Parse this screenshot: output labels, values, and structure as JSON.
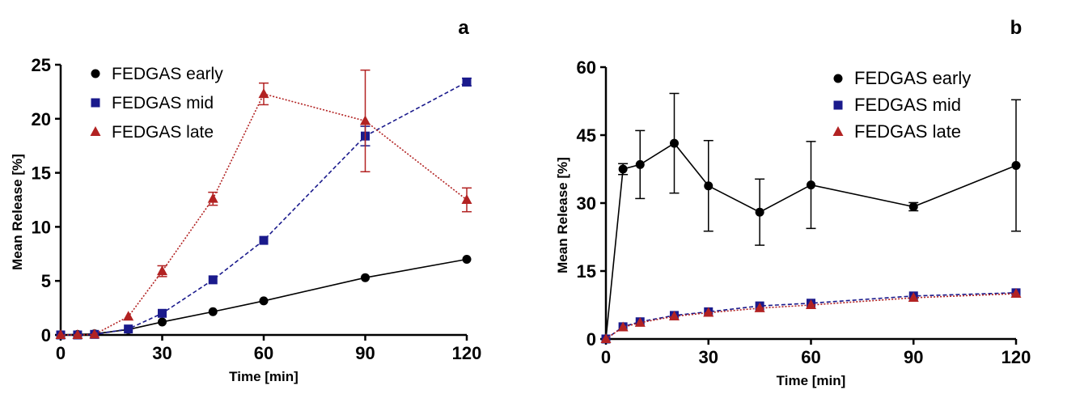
{
  "chart_data": [
    {
      "panel": "a",
      "type": "line",
      "xlabel": "Time [min]",
      "ylabel": "Mean Release [%]",
      "xlim": [
        0,
        120
      ],
      "ylim": [
        0,
        25
      ],
      "xticks": [
        0,
        30,
        60,
        90,
        120
      ],
      "yticks": [
        0,
        5,
        10,
        15,
        20,
        25
      ],
      "grid": false,
      "legend_position": "top-left",
      "series": [
        {
          "name": "FEDGAS early",
          "color": "#000000",
          "marker": "circle",
          "line": "solid",
          "x": [
            0,
            5,
            10,
            20,
            30,
            45,
            60,
            90,
            120
          ],
          "y": [
            0,
            0.05,
            0.1,
            0.5,
            1.2,
            2.15,
            3.15,
            5.3,
            7.0
          ],
          "err": [
            0,
            0,
            0,
            0,
            0,
            0,
            0,
            0,
            0
          ]
        },
        {
          "name": "FEDGAS mid",
          "color": "#1a1a8c",
          "marker": "square",
          "line": "dashed",
          "x": [
            0,
            5,
            10,
            20,
            30,
            45,
            60,
            90,
            120
          ],
          "y": [
            0,
            0,
            0.05,
            0.55,
            2.0,
            5.1,
            8.75,
            18.4,
            23.4
          ],
          "err": [
            0,
            0,
            0,
            0,
            0,
            0,
            0,
            0.9,
            0.35
          ]
        },
        {
          "name": "FEDGAS late",
          "color": "#b22222",
          "marker": "triangle",
          "line": "dotted",
          "x": [
            0,
            5,
            10,
            20,
            30,
            45,
            60,
            90,
            120
          ],
          "y": [
            0,
            0,
            0.05,
            1.7,
            5.9,
            12.6,
            22.3,
            19.8,
            12.5
          ],
          "err": [
            0,
            0,
            0,
            0,
            0.5,
            0.6,
            1.0,
            4.7,
            1.1
          ]
        }
      ]
    },
    {
      "panel": "b",
      "type": "line",
      "xlabel": "Time [min]",
      "ylabel": "Mean Release [%]",
      "xlim": [
        0,
        120
      ],
      "ylim": [
        0,
        60
      ],
      "xticks": [
        0,
        30,
        60,
        90,
        120
      ],
      "yticks": [
        0,
        15,
        30,
        45,
        60
      ],
      "grid": false,
      "legend_position": "top-right",
      "series": [
        {
          "name": "FEDGAS early",
          "color": "#000000",
          "marker": "circle",
          "line": "solid",
          "x": [
            0,
            5,
            10,
            20,
            30,
            45,
            60,
            90,
            120
          ],
          "y": [
            0,
            37.5,
            38.5,
            43.2,
            33.8,
            28.0,
            34.0,
            29.2,
            38.3
          ],
          "err": [
            0,
            1.2,
            7.5,
            11.0,
            10.0,
            7.3,
            9.6,
            0.9,
            14.5
          ]
        },
        {
          "name": "FEDGAS mid",
          "color": "#1a1a8c",
          "marker": "square",
          "line": "dashed",
          "x": [
            0,
            5,
            10,
            20,
            30,
            45,
            60,
            90,
            120
          ],
          "y": [
            0,
            2.7,
            3.8,
            5.2,
            6.0,
            7.3,
            7.9,
            9.5,
            10.2
          ],
          "err": [
            0,
            0,
            0,
            0,
            0,
            0,
            0,
            0,
            0
          ]
        },
        {
          "name": "FEDGAS late",
          "color": "#b22222",
          "marker": "triangle",
          "line": "dotted",
          "x": [
            0,
            5,
            10,
            20,
            30,
            45,
            60,
            90,
            120
          ],
          "y": [
            0,
            2.6,
            3.6,
            5.0,
            5.8,
            6.8,
            7.5,
            9.1,
            10.0
          ],
          "err": [
            0,
            0,
            0,
            0,
            0,
            0,
            0,
            0,
            0
          ]
        }
      ]
    }
  ]
}
